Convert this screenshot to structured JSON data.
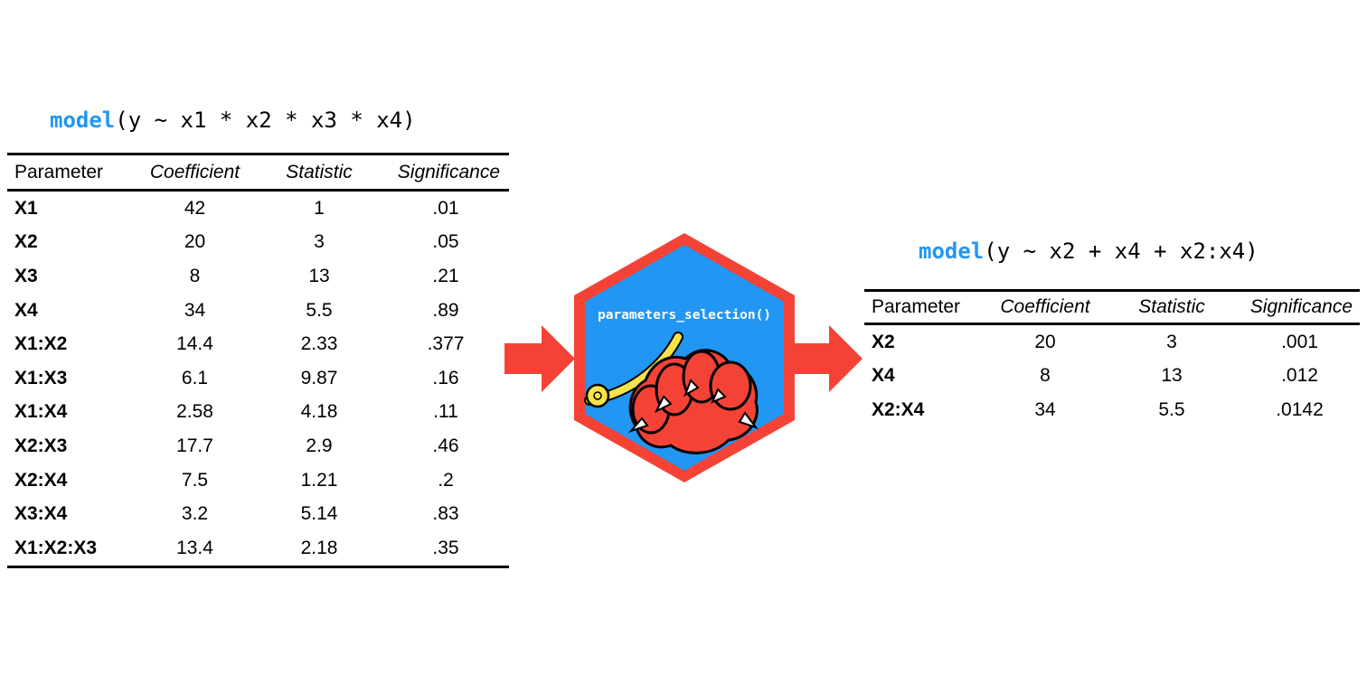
{
  "left_panel": {
    "formula_fn": "model",
    "formula_args": "(y ~ x1 * x2 * x3 * x4)",
    "headers": [
      "Parameter",
      "Coefficient",
      "Statistic",
      "Significance"
    ],
    "rows": [
      [
        "X1",
        "42",
        "1",
        ".01"
      ],
      [
        "X2",
        "20",
        "3",
        ".05"
      ],
      [
        "X3",
        "8",
        "13",
        ".21"
      ],
      [
        "X4",
        "34",
        "5.5",
        ".89"
      ],
      [
        "X1:X2",
        "14.4",
        "2.33",
        ".377"
      ],
      [
        "X1:X3",
        "6.1",
        "9.87",
        ".16"
      ],
      [
        "X1:X4",
        "2.58",
        "4.18",
        ".11"
      ],
      [
        "X2:X3",
        "17.7",
        "2.9",
        ".46"
      ],
      [
        "X2:X4",
        "7.5",
        "1.21",
        ".2"
      ],
      [
        "X3:X4",
        "3.2",
        "5.14",
        ".83"
      ],
      [
        "X1:X2:X3",
        "13.4",
        "2.18",
        ".35"
      ]
    ]
  },
  "hex_logo": {
    "label": "parameters_selection()",
    "icon": "monster-claw-with-measuring-tape-icon",
    "border_color": "#F44336",
    "fill_color": "#2196F3"
  },
  "right_panel": {
    "formula_fn": "model",
    "formula_args": "(y ~ x2 + x4 + x2:x4)",
    "headers": [
      "Parameter",
      "Coefficient",
      "Statistic",
      "Significance"
    ],
    "rows": [
      [
        "X2",
        "20",
        "3",
        ".001"
      ],
      [
        "X4",
        "8",
        "13",
        ".012"
      ],
      [
        "X2:X4",
        "34",
        "5.5",
        ".0142"
      ]
    ]
  },
  "colors": {
    "accent_blue": "#2196F3",
    "accent_red": "#F44336"
  }
}
